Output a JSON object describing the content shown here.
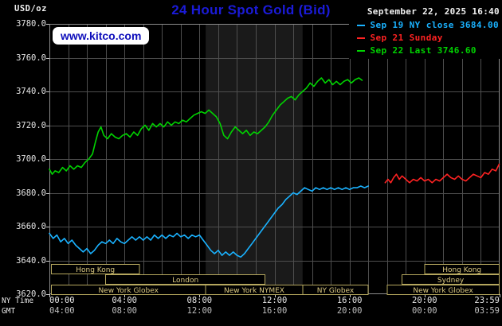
{
  "header": {
    "units_label": "USD/oz",
    "title": "24 Hour Spot Gold (Bid)",
    "datetime": "September 22, 2025 16:40",
    "watermark": "www.kitco.com",
    "legend": [
      {
        "series": "sep19",
        "label": "Sep 19 NY close 3684.00",
        "color": "#1ab2ff"
      },
      {
        "series": "sep21",
        "label": "Sep 21 Sunday",
        "color": "#ff2222"
      },
      {
        "series": "sep22",
        "label": "Sep 22 Last 3746.60",
        "color": "#00d300"
      }
    ]
  },
  "axes": {
    "y_ticks": [
      "3780.0",
      "3760.0",
      "3740.0",
      "3720.0",
      "3700.0",
      "3680.0",
      "3660.0",
      "3640.0",
      "3620.0"
    ],
    "x_row1_label": "NY Time",
    "x_row1_ticks": [
      "00:00",
      "04:00",
      "08:00",
      "12:00",
      "16:00",
      "20:00",
      "23:59"
    ],
    "x_row2_label": "GMT",
    "x_row2_ticks": [
      "04:00",
      "08:00",
      "12:00",
      "16:00",
      "20:00",
      "00:00",
      "03:59"
    ]
  },
  "colors": {
    "background": "#000000",
    "title": "#1b1bd8",
    "watermark_text": "#0d0dbb",
    "watermark_bg": "#ffffff",
    "grid": "#4e4e4e",
    "plot_border": "#8c8c8c",
    "tick": "#cfcfcf",
    "nymex_shade": "#1a1a1a",
    "axis_text": "#e6e6e6",
    "gmt_text": "#bfbfbf",
    "date_text": "#f2f2f2",
    "units_text": "#efefef",
    "session_box": "#b5a75e",
    "session_text": "#dcca82",
    "sep19": "#1ab2ff",
    "sep21": "#ff2222",
    "sep22": "#00d300"
  },
  "chart_data": {
    "type": "line",
    "title": "24 Hour Spot Gold (Bid)",
    "xlabel": "NY Time",
    "ylabel": "USD/oz",
    "x_range_hours": [
      0,
      24
    ],
    "ylim": [
      3620,
      3780
    ],
    "y_step": 20,
    "grid": true,
    "x_major_hours": [
      0,
      4,
      8,
      12,
      16,
      20,
      24
    ],
    "nymex_shade_hours": [
      8.33,
      13.5
    ],
    "series": [
      {
        "id": "sep19",
        "name": "Sep 19 NY close 3684.00",
        "color": "#1ab2ff",
        "points": [
          [
            0,
            3656
          ],
          [
            0.2,
            3653
          ],
          [
            0.4,
            3655
          ],
          [
            0.6,
            3651
          ],
          [
            0.8,
            3653
          ],
          [
            1,
            3650
          ],
          [
            1.2,
            3652
          ],
          [
            1.4,
            3649
          ],
          [
            1.6,
            3647
          ],
          [
            1.8,
            3645
          ],
          [
            2,
            3647
          ],
          [
            2.2,
            3644
          ],
          [
            2.4,
            3646
          ],
          [
            2.6,
            3649
          ],
          [
            2.8,
            3651
          ],
          [
            3,
            3650
          ],
          [
            3.2,
            3652
          ],
          [
            3.4,
            3650
          ],
          [
            3.6,
            3653
          ],
          [
            3.8,
            3651
          ],
          [
            4,
            3650
          ],
          [
            4.2,
            3652
          ],
          [
            4.4,
            3654
          ],
          [
            4.6,
            3652
          ],
          [
            4.8,
            3654
          ],
          [
            5,
            3652
          ],
          [
            5.2,
            3654
          ],
          [
            5.4,
            3652
          ],
          [
            5.6,
            3655
          ],
          [
            5.8,
            3653
          ],
          [
            6,
            3655
          ],
          [
            6.2,
            3653
          ],
          [
            6.4,
            3655
          ],
          [
            6.6,
            3654
          ],
          [
            6.8,
            3656
          ],
          [
            7,
            3654
          ],
          [
            7.2,
            3655
          ],
          [
            7.4,
            3653
          ],
          [
            7.6,
            3655
          ],
          [
            7.8,
            3654
          ],
          [
            8,
            3655
          ],
          [
            8.2,
            3652
          ],
          [
            8.4,
            3649
          ],
          [
            8.6,
            3646
          ],
          [
            8.8,
            3644
          ],
          [
            9,
            3646
          ],
          [
            9.2,
            3643
          ],
          [
            9.4,
            3645
          ],
          [
            9.6,
            3643
          ],
          [
            9.8,
            3645
          ],
          [
            10,
            3643
          ],
          [
            10.2,
            3642
          ],
          [
            10.4,
            3644
          ],
          [
            10.6,
            3647
          ],
          [
            10.8,
            3650
          ],
          [
            11,
            3653
          ],
          [
            11.2,
            3656
          ],
          [
            11.4,
            3659
          ],
          [
            11.6,
            3662
          ],
          [
            11.8,
            3665
          ],
          [
            12,
            3668
          ],
          [
            12.2,
            3671
          ],
          [
            12.4,
            3673
          ],
          [
            12.6,
            3676
          ],
          [
            12.8,
            3678
          ],
          [
            13,
            3680
          ],
          [
            13.2,
            3679
          ],
          [
            13.4,
            3681
          ],
          [
            13.6,
            3683
          ],
          [
            13.8,
            3682
          ],
          [
            14,
            3681
          ],
          [
            14.2,
            3683
          ],
          [
            14.4,
            3682
          ],
          [
            14.6,
            3683
          ],
          [
            14.8,
            3682
          ],
          [
            15,
            3683
          ],
          [
            15.2,
            3682
          ],
          [
            15.4,
            3683
          ],
          [
            15.6,
            3682
          ],
          [
            15.8,
            3683
          ],
          [
            16,
            3682
          ],
          [
            16.2,
            3683
          ],
          [
            16.4,
            3683
          ],
          [
            16.6,
            3684
          ],
          [
            16.8,
            3683
          ],
          [
            17,
            3684
          ]
        ]
      },
      {
        "id": "sep21",
        "name": "Sep 21 Sunday",
        "color": "#ff2222",
        "points": [
          [
            17.9,
            3686
          ],
          [
            18.05,
            3688
          ],
          [
            18.2,
            3686
          ],
          [
            18.35,
            3689
          ],
          [
            18.5,
            3691
          ],
          [
            18.65,
            3688
          ],
          [
            18.8,
            3690
          ],
          [
            19,
            3688
          ],
          [
            19.2,
            3686
          ],
          [
            19.4,
            3688
          ],
          [
            19.6,
            3687
          ],
          [
            19.8,
            3689
          ],
          [
            20,
            3687
          ],
          [
            20.2,
            3688
          ],
          [
            20.4,
            3686
          ],
          [
            20.6,
            3688
          ],
          [
            20.8,
            3687
          ],
          [
            21,
            3689
          ],
          [
            21.2,
            3691
          ],
          [
            21.4,
            3689
          ],
          [
            21.6,
            3688
          ],
          [
            21.8,
            3690
          ],
          [
            22,
            3688
          ],
          [
            22.2,
            3687
          ],
          [
            22.4,
            3689
          ],
          [
            22.6,
            3691
          ],
          [
            22.8,
            3690
          ],
          [
            23,
            3689
          ],
          [
            23.2,
            3692
          ],
          [
            23.4,
            3691
          ],
          [
            23.6,
            3694
          ],
          [
            23.8,
            3693
          ],
          [
            23.98,
            3697
          ]
        ]
      },
      {
        "id": "sep22",
        "name": "Sep 22 Last 3746.60",
        "color": "#00d300",
        "points": [
          [
            0,
            3694
          ],
          [
            0.15,
            3691
          ],
          [
            0.3,
            3693
          ],
          [
            0.5,
            3692
          ],
          [
            0.7,
            3695
          ],
          [
            0.9,
            3693
          ],
          [
            1.1,
            3696
          ],
          [
            1.3,
            3694
          ],
          [
            1.5,
            3696
          ],
          [
            1.7,
            3695
          ],
          [
            1.9,
            3698
          ],
          [
            2.1,
            3700
          ],
          [
            2.3,
            3703
          ],
          [
            2.45,
            3710
          ],
          [
            2.6,
            3716
          ],
          [
            2.75,
            3719
          ],
          [
            2.9,
            3714
          ],
          [
            3.1,
            3712
          ],
          [
            3.3,
            3715
          ],
          [
            3.5,
            3713
          ],
          [
            3.7,
            3712
          ],
          [
            3.9,
            3714
          ],
          [
            4.1,
            3715
          ],
          [
            4.3,
            3713
          ],
          [
            4.5,
            3716
          ],
          [
            4.7,
            3714
          ],
          [
            4.9,
            3718
          ],
          [
            5.1,
            3720
          ],
          [
            5.3,
            3717
          ],
          [
            5.5,
            3721
          ],
          [
            5.7,
            3719
          ],
          [
            5.9,
            3721
          ],
          [
            6.1,
            3719
          ],
          [
            6.3,
            3722
          ],
          [
            6.5,
            3720
          ],
          [
            6.7,
            3722
          ],
          [
            6.9,
            3721
          ],
          [
            7.1,
            3723
          ],
          [
            7.3,
            3722
          ],
          [
            7.5,
            3724
          ],
          [
            7.7,
            3726
          ],
          [
            7.9,
            3727
          ],
          [
            8.1,
            3728
          ],
          [
            8.3,
            3727
          ],
          [
            8.5,
            3729
          ],
          [
            8.7,
            3727
          ],
          [
            8.9,
            3725
          ],
          [
            9.1,
            3721
          ],
          [
            9.3,
            3714
          ],
          [
            9.5,
            3712
          ],
          [
            9.7,
            3716
          ],
          [
            9.9,
            3719
          ],
          [
            10.1,
            3717
          ],
          [
            10.3,
            3715
          ],
          [
            10.5,
            3717
          ],
          [
            10.7,
            3714
          ],
          [
            10.9,
            3716
          ],
          [
            11.1,
            3715
          ],
          [
            11.3,
            3717
          ],
          [
            11.5,
            3719
          ],
          [
            11.7,
            3722
          ],
          [
            11.9,
            3726
          ],
          [
            12.1,
            3729
          ],
          [
            12.3,
            3732
          ],
          [
            12.5,
            3734
          ],
          [
            12.7,
            3736
          ],
          [
            12.9,
            3737
          ],
          [
            13.1,
            3735
          ],
          [
            13.3,
            3738
          ],
          [
            13.5,
            3740
          ],
          [
            13.7,
            3742
          ],
          [
            13.9,
            3745
          ],
          [
            14.1,
            3743
          ],
          [
            14.3,
            3746
          ],
          [
            14.5,
            3748
          ],
          [
            14.7,
            3745
          ],
          [
            14.9,
            3747
          ],
          [
            15.1,
            3744
          ],
          [
            15.3,
            3746
          ],
          [
            15.5,
            3744
          ],
          [
            15.7,
            3746
          ],
          [
            15.9,
            3747
          ],
          [
            16.1,
            3745
          ],
          [
            16.3,
            3747
          ],
          [
            16.5,
            3748
          ],
          [
            16.67,
            3746.6
          ]
        ]
      }
    ],
    "sessions": [
      {
        "row": 0,
        "label": "Hong Kong",
        "start": 0.1,
        "end": 4.8
      },
      {
        "row": 0,
        "label": "Hong Kong",
        "start": 20.0,
        "end": 23.98
      },
      {
        "row": 1,
        "label": "London",
        "start": 3.0,
        "end": 11.5
      },
      {
        "row": 1,
        "label": "Sydney",
        "start": 18.8,
        "end": 23.98
      },
      {
        "row": 2,
        "label": "New York Globex",
        "start": 0.1,
        "end": 8.33
      },
      {
        "row": 2,
        "label": "New York NYMEX",
        "start": 8.33,
        "end": 13.5
      },
      {
        "row": 2,
        "label": "NY Globex",
        "start": 13.5,
        "end": 17.0
      },
      {
        "row": 2,
        "label": "New York Globex",
        "start": 18.0,
        "end": 23.98
      }
    ]
  }
}
